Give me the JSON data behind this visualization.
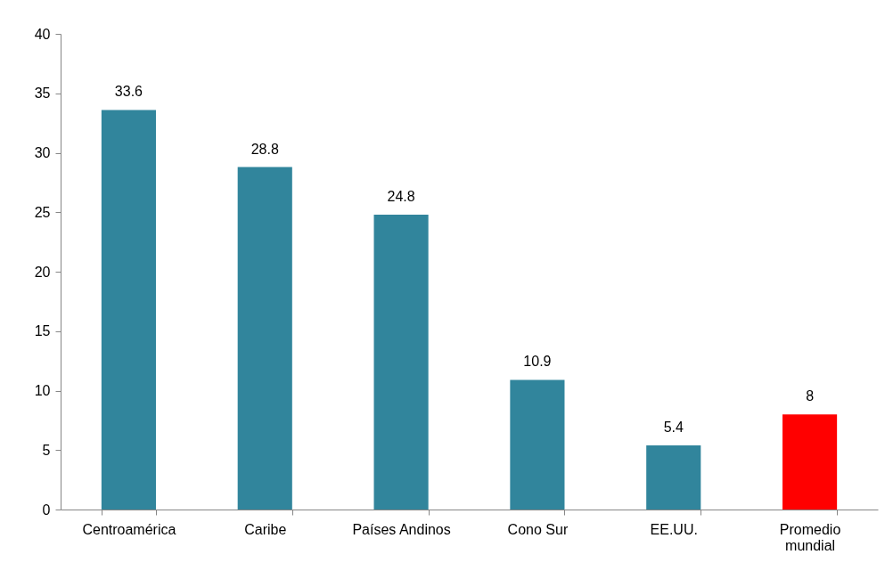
{
  "chart_data": {
    "type": "bar",
    "categories": [
      "Centroamérica",
      "Caribe",
      "Países Andinos",
      "Cono Sur",
      "EE.UU.",
      "Promedio mundial"
    ],
    "values": [
      33.6,
      28.8,
      24.8,
      10.9,
      5.4,
      8
    ],
    "colors": [
      "#31859c",
      "#31859c",
      "#31859c",
      "#31859c",
      "#31859c",
      "#ff0000"
    ],
    "ylim": [
      0,
      40
    ],
    "yticks": [
      0,
      5,
      10,
      15,
      20,
      25,
      30,
      35,
      40
    ],
    "grid": false,
    "data_labels": true
  }
}
